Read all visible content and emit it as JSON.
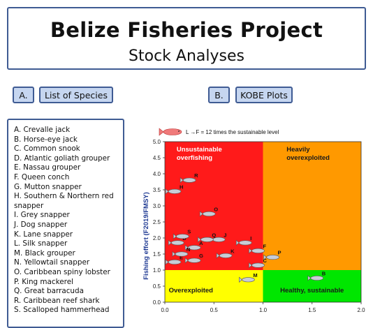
{
  "header": {
    "title": "Belize Fisheries Project",
    "subtitle": "Stock Analyses"
  },
  "section_a": {
    "badge": "A.",
    "heading": "List of Species",
    "species": [
      "A. Crevalle jack",
      "B. Horse-eye jack",
      "C. Common snook",
      "D. Atlantic goliath grouper",
      "E. Nassau grouper",
      "F. Queen conch",
      "G. Mutton snapper",
      "H. Southern & Northern red snapper",
      "I. Grey snapper",
      "J. Dog snapper",
      "K. Lane snapper",
      "L. Silk snapper",
      "M. Black grouper",
      "N. Yellowtail snapper",
      "O. Caribbean spiny lobster",
      "P. King mackerel",
      "Q. Great barracuda",
      "R. Caribbean reef shark",
      "S. Scalloped hammerhead"
    ]
  },
  "section_b": {
    "badge": "B.",
    "heading": "KOBE Plots"
  },
  "colors": {
    "accent_border": "#3f5b93",
    "pill_fill": "#c6d6f0",
    "overfishing": "#ff1a1a",
    "overexploited_heavy": "#ff9900",
    "overexploited": "#ffff00",
    "sustainable": "#00e600",
    "axis_label": "#1f3a93"
  },
  "chart_data": {
    "type": "scatter",
    "xlabel": "",
    "ylabel": "Fishing effort (F2019/FMSY)",
    "xlim": [
      0,
      2.0
    ],
    "ylim": [
      0,
      5.0
    ],
    "xticks": [
      "0.0",
      "0.5",
      "1.0",
      "1.5",
      "2.0"
    ],
    "yticks": [
      "0.0",
      "0.5",
      "1.0",
      "1.5",
      "2.0",
      "2.5",
      "3.0",
      "3.5",
      "4.0",
      "4.5",
      "5.0"
    ],
    "legend_note": "L →F = 12 times the sustainable level",
    "quadrants": [
      {
        "label": "Unsustainable overfishing",
        "x": [
          0,
          1.0
        ],
        "y": [
          1.0,
          5.0
        ],
        "color": "#ff1a1a"
      },
      {
        "label": "Heavily overexploited",
        "x": [
          1.0,
          2.0
        ],
        "y": [
          1.0,
          5.0
        ],
        "color": "#ff9900"
      },
      {
        "label": "Overexploited",
        "x": [
          0,
          1.0
        ],
        "y": [
          0,
          1.0
        ],
        "color": "#ffff00"
      },
      {
        "label": "Healthy, sustainable",
        "x": [
          1.0,
          2.0
        ],
        "y": [
          0,
          1.0
        ],
        "color": "#00e600"
      }
    ],
    "points": [
      {
        "label": "A",
        "x": 0.3,
        "y": 1.7
      },
      {
        "label": "B",
        "x": 1.55,
        "y": 0.75
      },
      {
        "label": "C",
        "x": 0.95,
        "y": 1.15
      },
      {
        "label": "D",
        "x": 0.13,
        "y": 1.85
      },
      {
        "label": "E",
        "x": 0.1,
        "y": 1.25
      },
      {
        "label": "F",
        "x": 0.95,
        "y": 1.6
      },
      {
        "label": "G",
        "x": 0.3,
        "y": 1.3
      },
      {
        "label": "H",
        "x": 0.1,
        "y": 3.45
      },
      {
        "label": "I",
        "x": 0.82,
        "y": 1.85
      },
      {
        "label": "J",
        "x": 0.55,
        "y": 1.95
      },
      {
        "label": "K",
        "x": 0.62,
        "y": 1.45
      },
      {
        "label": "M",
        "x": 0.85,
        "y": 0.7
      },
      {
        "label": "N",
        "x": 0.17,
        "y": 1.5
      },
      {
        "label": "O",
        "x": 0.45,
        "y": 2.75
      },
      {
        "label": "P",
        "x": 1.1,
        "y": 1.4
      },
      {
        "label": "Q",
        "x": 0.43,
        "y": 1.95
      },
      {
        "label": "R",
        "x": 0.25,
        "y": 3.8
      },
      {
        "label": "S",
        "x": 0.18,
        "y": 2.05
      }
    ]
  }
}
